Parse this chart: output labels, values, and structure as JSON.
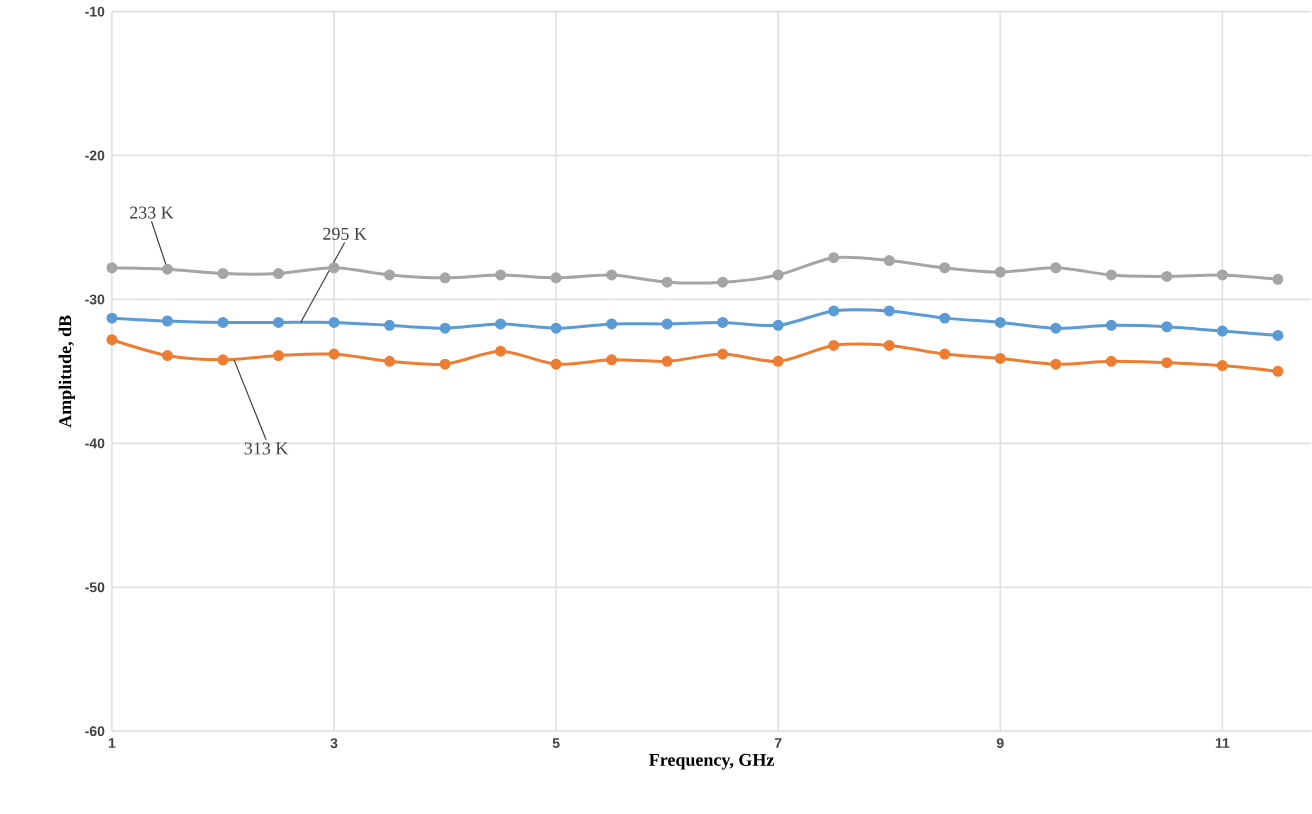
{
  "chart_data": {
    "type": "line",
    "xlabel": "Frequency, GHz",
    "ylabel": "Amplitude, dB",
    "x": [
      1,
      1.5,
      2,
      2.5,
      3,
      3.5,
      4,
      4.5,
      5,
      5.5,
      6,
      6.5,
      7,
      7.5,
      8,
      8.5,
      9,
      9.5,
      10,
      10.5,
      11,
      11.5
    ],
    "series": [
      {
        "color": "#a5a5a5",
        "values": [
          -27.8,
          -27.9,
          -28.2,
          -28.2,
          -27.8,
          -28.3,
          -28.5,
          -28.3,
          -28.5,
          -28.3,
          -28.8,
          -28.8,
          -28.3,
          -27.1,
          -27.3,
          -27.8,
          -28.1,
          -27.8,
          -28.3,
          -28.4,
          -28.3,
          -28.6
        ]
      },
      {
        "color": "#5b9bd5",
        "values": [
          -31.3,
          -31.5,
          -31.6,
          -31.6,
          -31.6,
          -31.8,
          -32.0,
          -31.7,
          -32.0,
          -31.7,
          -31.7,
          -31.6,
          -31.8,
          -30.8,
          -30.8,
          -31.3,
          -31.6,
          -32.0,
          -31.8,
          -31.9,
          -32.2,
          -32.5
        ]
      },
      {
        "color": "#ed7d31",
        "values": [
          -32.8,
          -33.9,
          -34.2,
          -33.9,
          -33.8,
          -34.3,
          -34.5,
          -33.6,
          -34.5,
          -34.2,
          -34.3,
          -33.8,
          -34.3,
          -33.2,
          -33.2,
          -33.8,
          -34.1,
          -34.5,
          -34.3,
          -34.4,
          -34.6,
          -35.0
        ]
      }
    ],
    "xlim": [
      1,
      11.8
    ],
    "ylim": [
      -60,
      -10
    ],
    "xticks": [
      1,
      3,
      5,
      7,
      9,
      11
    ],
    "yticks": [
      -60,
      -50,
      -40,
      -30,
      -20,
      -10
    ],
    "grid": true,
    "marker": "circle",
    "line_style": "solid",
    "annotations": [
      {
        "text": "233 K",
        "x": 1.5,
        "y": -27.9
      },
      {
        "text": "295 K",
        "x": 2.7,
        "y": -31.6
      },
      {
        "text": "313 K",
        "x": 2.1,
        "y": -34.2
      }
    ]
  }
}
